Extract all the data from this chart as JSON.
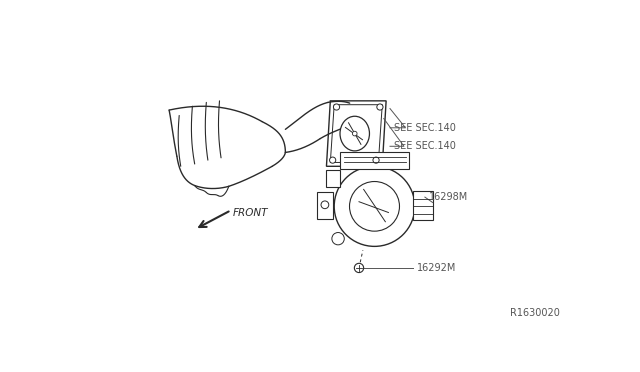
{
  "background_color": "#ffffff",
  "line_color": "#2a2a2a",
  "label_color": "#555555",
  "fig_width": 6.4,
  "fig_height": 3.72,
  "dpi": 100,
  "labels": {
    "sec140_top": "SEE SEC.140",
    "sec140_bot": "SEE SEC.140",
    "part1": "16298M",
    "part2": "16292M",
    "front": "FRONT",
    "ref": "R1630020"
  }
}
